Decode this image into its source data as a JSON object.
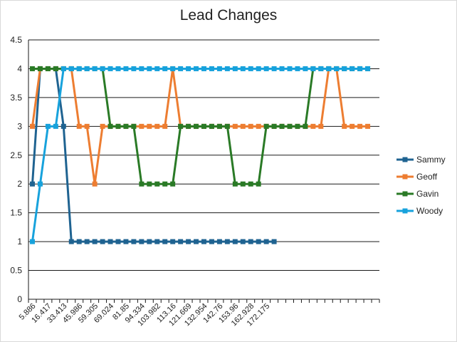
{
  "chart_data": {
    "type": "line",
    "title": "Lead Changes",
    "xlabel": "",
    "ylabel": "",
    "ylim": [
      0,
      4.5
    ],
    "yticks": [
      "0",
      "0.5",
      "1",
      "1.5",
      "2",
      "2.5",
      "3",
      "3.5",
      "4",
      "4.5"
    ],
    "grid": true,
    "legend_position": "right",
    "x_tick_labels": [
      "5.886",
      "16.417",
      "33.413",
      "45.986",
      "59.305",
      "69.024",
      "81.85",
      "94.334",
      "103.982",
      "113.16",
      "121.669",
      "132.954",
      "142.76",
      "153.96",
      "162.928",
      "172.175"
    ],
    "series": [
      {
        "name": "Sammy",
        "color": "#1f6391",
        "values": [
          2,
          4,
          4,
          4,
          3,
          1,
          1,
          1,
          1,
          1,
          1,
          1,
          1,
          1,
          1,
          1,
          1,
          1,
          1,
          1,
          1,
          1,
          1,
          1,
          1,
          1,
          1,
          1,
          1,
          1,
          1,
          1
        ]
      },
      {
        "name": "Geoff",
        "color": "#ed7d31",
        "values": [
          3,
          4,
          4,
          4,
          4,
          4,
          3,
          3,
          2,
          3,
          3,
          3,
          3,
          3,
          3,
          3,
          3,
          3,
          4,
          3,
          3,
          3,
          3,
          3,
          3,
          3,
          3,
          3,
          3,
          3,
          3,
          3,
          3,
          3,
          3,
          3,
          3,
          3,
          4,
          4,
          3,
          3,
          3,
          3
        ]
      },
      {
        "name": "Gavin",
        "color": "#2a7a26",
        "values": [
          4,
          4,
          4,
          4,
          4,
          4,
          4,
          4,
          4,
          4,
          3,
          3,
          3,
          3,
          2,
          2,
          2,
          2,
          2,
          3,
          3,
          3,
          3,
          3,
          3,
          3,
          2,
          2,
          2,
          2,
          3,
          3,
          3,
          3,
          3,
          3,
          4,
          4,
          4,
          4,
          4,
          4,
          4,
          4
        ]
      },
      {
        "name": "Woody",
        "color": "#17a2dc",
        "values": [
          1,
          2,
          3,
          3,
          4,
          4,
          4,
          4,
          4,
          4,
          4,
          4,
          4,
          4,
          4,
          4,
          4,
          4,
          4,
          4,
          4,
          4,
          4,
          4,
          4,
          4,
          4,
          4,
          4,
          4,
          4,
          4,
          4,
          4,
          4,
          4,
          4,
          4,
          4,
          4,
          4,
          4,
          4,
          4
        ]
      }
    ]
  }
}
